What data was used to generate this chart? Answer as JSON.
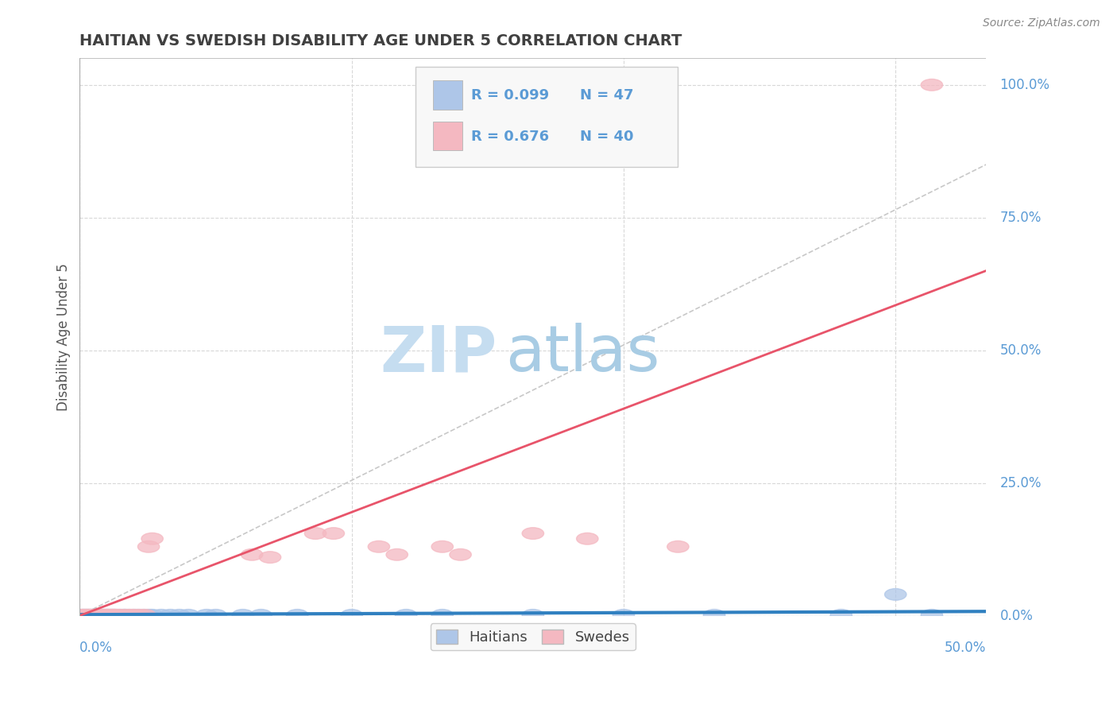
{
  "title": "HAITIAN VS SWEDISH DISABILITY AGE UNDER 5 CORRELATION CHART",
  "source": "Source: ZipAtlas.com",
  "ylabel": "Disability Age Under 5",
  "legend_label1": "Haitians",
  "legend_label2": "Swedes",
  "legend_R1": "R = 0.099",
  "legend_N1": "N = 47",
  "legend_R2": "R = 0.676",
  "legend_N2": "N = 40",
  "haitian_color": "#aec6e8",
  "swedish_color": "#f4b8c1",
  "haitian_line_color": "#3080c0",
  "swedish_line_color": "#e8546a",
  "ref_line_color": "#c8c8c8",
  "title_color": "#404040",
  "axis_color": "#5b9bd5",
  "legend_text_color": "#5b9bd5",
  "background_color": "#ffffff",
  "watermark_color": "#ddeef8",
  "xmin": 0.0,
  "xmax": 0.5,
  "ymin": 0.0,
  "ymax": 1.0,
  "ytick_labels": [
    "0.0%",
    "25.0%",
    "50.0%",
    "75.0%",
    "100.0%"
  ],
  "ytick_values": [
    0.0,
    0.25,
    0.5,
    0.75,
    1.0
  ],
  "haitian_x": [
    0.001,
    0.002,
    0.003,
    0.004,
    0.005,
    0.006,
    0.007,
    0.008,
    0.009,
    0.01,
    0.011,
    0.012,
    0.013,
    0.014,
    0.015,
    0.016,
    0.017,
    0.018,
    0.019,
    0.02,
    0.022,
    0.024,
    0.025,
    0.027,
    0.03,
    0.032,
    0.035,
    0.038,
    0.04,
    0.045,
    0.05,
    0.055,
    0.06,
    0.07,
    0.075,
    0.09,
    0.1,
    0.12,
    0.15,
    0.18,
    0.2,
    0.25,
    0.3,
    0.35,
    0.42,
    0.45,
    0.47
  ],
  "haitian_y": [
    0.001,
    0.001,
    0.001,
    0.001,
    0.001,
    0.001,
    0.001,
    0.001,
    0.001,
    0.001,
    0.001,
    0.001,
    0.001,
    0.001,
    0.001,
    0.001,
    0.001,
    0.001,
    0.001,
    0.001,
    0.001,
    0.001,
    0.001,
    0.001,
    0.001,
    0.001,
    0.001,
    0.001,
    0.001,
    0.001,
    0.001,
    0.001,
    0.001,
    0.001,
    0.001,
    0.001,
    0.001,
    0.001,
    0.001,
    0.001,
    0.001,
    0.001,
    0.001,
    0.001,
    0.001,
    0.04,
    0.001
  ],
  "swedish_x": [
    0.001,
    0.002,
    0.003,
    0.004,
    0.005,
    0.006,
    0.007,
    0.008,
    0.009,
    0.01,
    0.011,
    0.012,
    0.013,
    0.014,
    0.015,
    0.016,
    0.017,
    0.018,
    0.019,
    0.02,
    0.022,
    0.025,
    0.028,
    0.03,
    0.033,
    0.036,
    0.038,
    0.04,
    0.095,
    0.105,
    0.13,
    0.14,
    0.165,
    0.175,
    0.2,
    0.21,
    0.25,
    0.28,
    0.33,
    0.47
  ],
  "swedish_y": [
    0.001,
    0.001,
    0.001,
    0.001,
    0.001,
    0.001,
    0.001,
    0.001,
    0.001,
    0.001,
    0.001,
    0.001,
    0.001,
    0.001,
    0.001,
    0.001,
    0.001,
    0.001,
    0.001,
    0.001,
    0.001,
    0.001,
    0.001,
    0.001,
    0.001,
    0.001,
    0.13,
    0.145,
    0.115,
    0.11,
    0.155,
    0.155,
    0.13,
    0.115,
    0.13,
    0.115,
    0.155,
    0.145,
    0.13,
    1.0
  ],
  "haitian_trend_x": [
    0.0,
    0.5
  ],
  "haitian_trend_y": [
    0.002,
    0.008
  ],
  "swedish_trend_x": [
    0.0,
    0.5
  ],
  "swedish_trend_y": [
    0.0,
    0.65
  ]
}
